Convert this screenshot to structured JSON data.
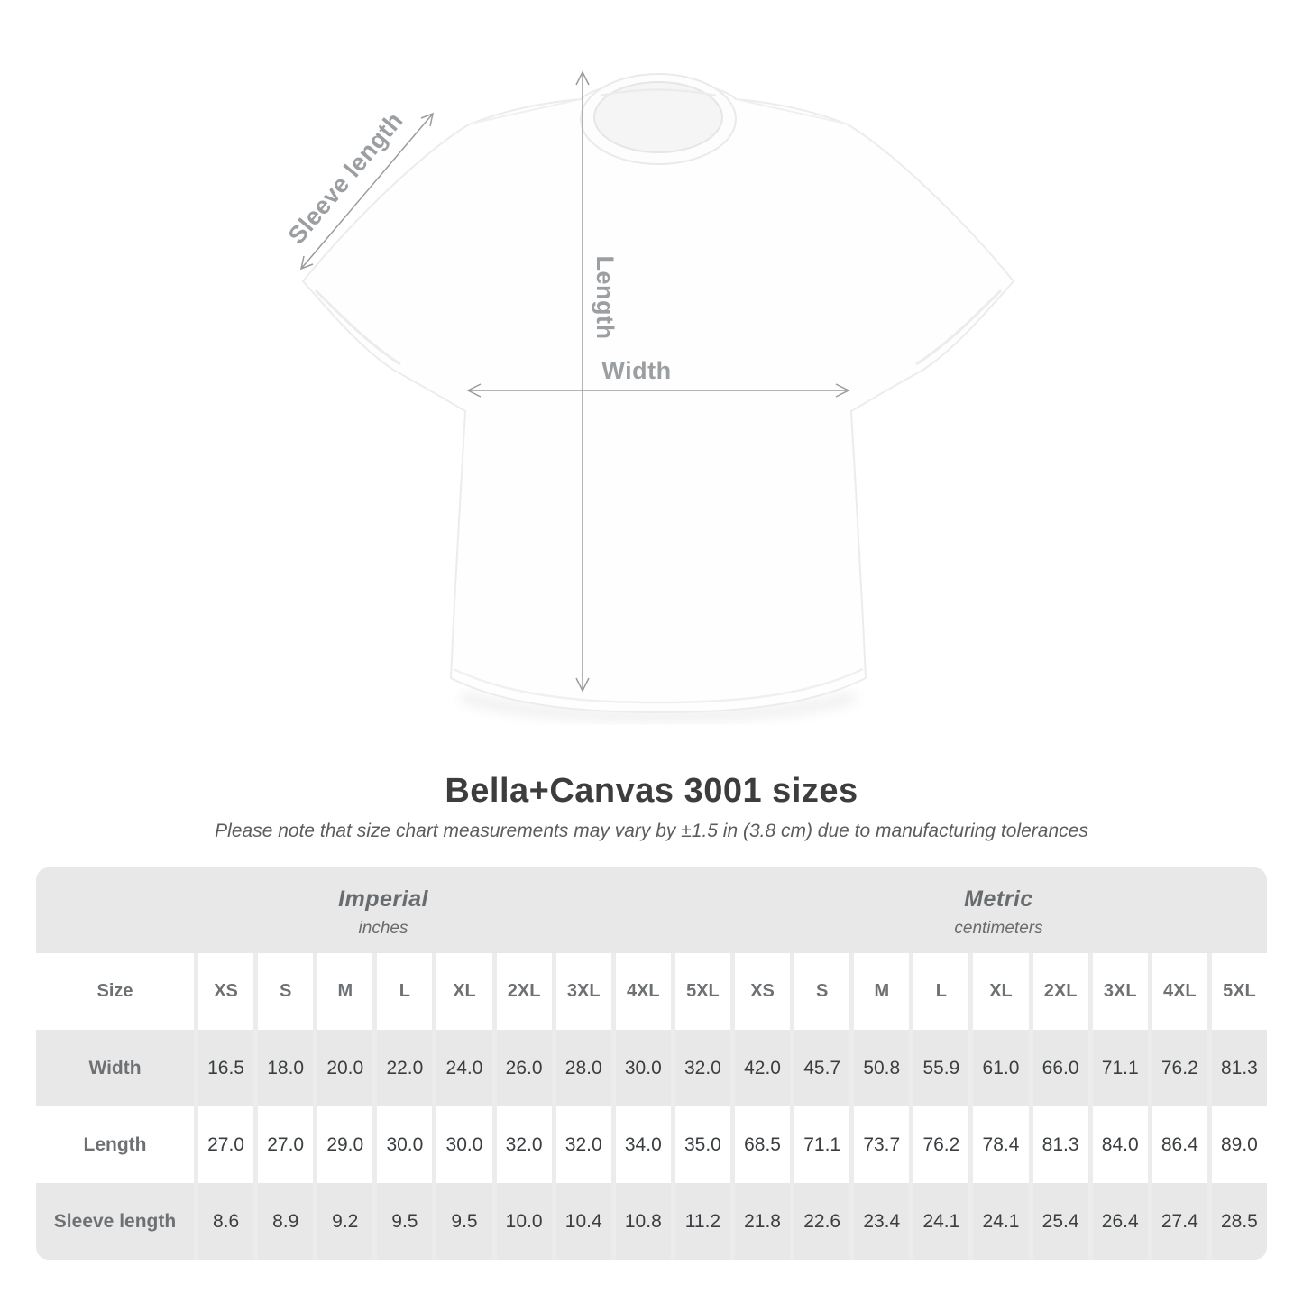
{
  "title": "Bella+Canvas 3001 sizes",
  "subtitle": "Please note that size chart measurements may vary by ±1.5 in (3.8 cm) due to manufacturing tolerances",
  "diagram": {
    "sleeve_label": "Sleeve length",
    "length_label": "Length",
    "width_label": "Width"
  },
  "size_table": {
    "groups": [
      {
        "label": "Imperial",
        "unit": "inches"
      },
      {
        "label": "Metric",
        "unit": "centimeters"
      }
    ],
    "size_row_label": "Size",
    "sizes": [
      "XS",
      "S",
      "M",
      "L",
      "XL",
      "2XL",
      "3XL",
      "4XL",
      "5XL"
    ],
    "rows": [
      {
        "label": "Width",
        "imperial": [
          "16.5",
          "18.0",
          "20.0",
          "22.0",
          "24.0",
          "26.0",
          "28.0",
          "30.0",
          "32.0"
        ],
        "metric": [
          "42.0",
          "45.7",
          "50.8",
          "55.9",
          "61.0",
          "66.0",
          "71.1",
          "76.2",
          "81.3"
        ]
      },
      {
        "label": "Length",
        "imperial": [
          "27.0",
          "27.0",
          "29.0",
          "30.0",
          "30.0",
          "32.0",
          "32.0",
          "34.0",
          "35.0"
        ],
        "metric": [
          "68.5",
          "71.1",
          "73.7",
          "76.2",
          "78.4",
          "81.3",
          "84.0",
          "86.4",
          "89.0"
        ]
      },
      {
        "label": "Sleeve length",
        "imperial": [
          "8.6",
          "8.9",
          "9.2",
          "9.5",
          "9.5",
          "10.0",
          "10.4",
          "10.8",
          "11.2"
        ],
        "metric": [
          "21.8",
          "22.6",
          "23.4",
          "24.1",
          "24.1",
          "25.4",
          "26.4",
          "27.4",
          "28.5"
        ]
      }
    ]
  },
  "chart_data": {
    "type": "table",
    "title": "Bella+Canvas 3001 sizes",
    "note": "Please note that size chart measurements may vary by ±1.5 in (3.8 cm) due to manufacturing tolerances",
    "column_groups": [
      "Imperial (inches)",
      "Metric (centimeters)"
    ],
    "sizes": [
      "XS",
      "S",
      "M",
      "L",
      "XL",
      "2XL",
      "3XL",
      "4XL",
      "5XL"
    ],
    "measurements": [
      {
        "name": "Width",
        "imperial_in": [
          16.5,
          18.0,
          20.0,
          22.0,
          24.0,
          26.0,
          28.0,
          30.0,
          32.0
        ],
        "metric_cm": [
          42.0,
          45.7,
          50.8,
          55.9,
          61.0,
          66.0,
          71.1,
          76.2,
          81.3
        ]
      },
      {
        "name": "Length",
        "imperial_in": [
          27.0,
          27.0,
          29.0,
          30.0,
          30.0,
          32.0,
          32.0,
          34.0,
          35.0
        ],
        "metric_cm": [
          68.5,
          71.1,
          73.7,
          76.2,
          78.4,
          81.3,
          84.0,
          86.4,
          89.0
        ]
      },
      {
        "name": "Sleeve length",
        "imperial_in": [
          8.6,
          8.9,
          9.2,
          9.5,
          9.5,
          10.0,
          10.4,
          10.8,
          11.2
        ],
        "metric_cm": [
          21.8,
          22.6,
          23.4,
          24.1,
          24.1,
          25.4,
          26.4,
          27.4,
          28.5
        ]
      }
    ]
  },
  "colors": {
    "table-header-bg": "#e8e8e8",
    "table-stripe-bg": "#e8e8e8",
    "table-gap": "#ececec",
    "row-white": "#ffffff",
    "header-text": "#686c6f",
    "label-gray": "#6d7174",
    "value-color": "#3b3e40",
    "title-color": "#3d3d3d",
    "subtitle-color": "#5c5c5c",
    "measure-gray": "#9b9b9b",
    "measure-label": "#9b9fa1"
  }
}
